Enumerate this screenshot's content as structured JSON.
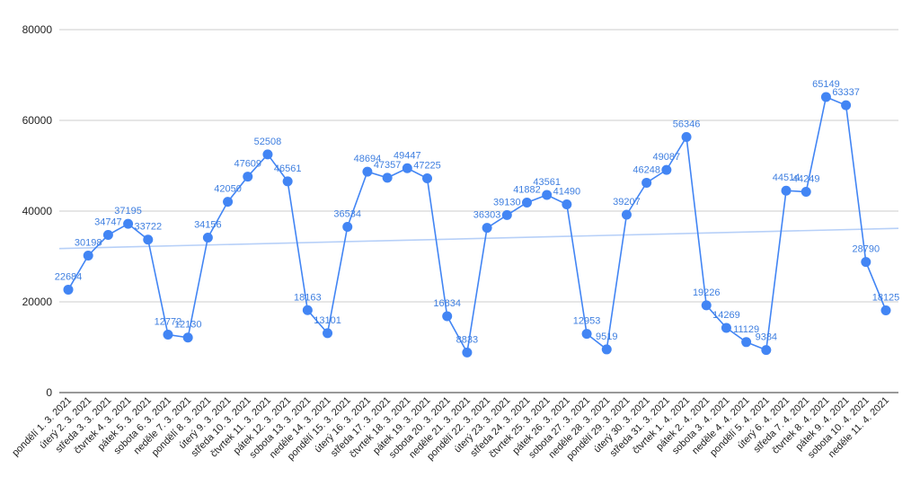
{
  "chart_data": {
    "type": "line",
    "title": "",
    "xlabel": "",
    "ylabel": "",
    "ylim": [
      0,
      80000
    ],
    "yticks": [
      0,
      20000,
      40000,
      60000,
      80000
    ],
    "grid": true,
    "trendline": true,
    "colors": {
      "series": "#4285f4",
      "trend": "#b7d0f8",
      "label": "#3f7fe0"
    },
    "categories": [
      "pondělí 1. 3. 2021",
      "úterý 2. 3. 2021",
      "středa 3. 3. 2021",
      "čtvrtek 4. 3. 2021",
      "pátek 5. 3. 2021",
      "sobota 6. 3. 2021",
      "neděle 7. 3. 2021",
      "pondělí 8. 3. 2021",
      "úterý 9. 3. 2021",
      "středa 10. 3. 2021",
      "čtvrtek 11. 3. 2021",
      "pátek 12. 3. 2021",
      "sobota 13. 3. 2021",
      "neděle 14. 3. 2021",
      "pondělí 15. 3. 2021",
      "úterý 16. 3. 2021",
      "středa 17. 3. 2021",
      "čtvrtek 18. 3. 2021",
      "pátek 19. 3. 2021",
      "sobota 20. 3. 2021",
      "neděle 21. 3. 2021",
      "pondělí 22. 3. 2021",
      "úterý 23. 3. 2021",
      "středa 24. 3. 2021",
      "čtvrtek 25. 3. 2021",
      "pátek 26. 3. 2021",
      "sobota 27. 3. 2021",
      "neděle 28. 3. 2021",
      "pondělí 29. 3. 2021",
      "úterý 30. 3. 2021",
      "středa 31. 3. 2021",
      "čtvrtek 1. 4. 2021",
      "pátek 2. 4. 2021",
      "sobota 3. 4. 2021",
      "neděle 4. 4. 2021",
      "pondělí 5. 4. 2021",
      "úterý 6. 4. 2021",
      "středa 7. 4. 2021",
      "čtvrtek 8. 4. 2021",
      "pátek 9. 4. 2021",
      "sobota 10. 4. 2021",
      "neděle 11. 4. 2021"
    ],
    "values": [
      22684,
      30198,
      34747,
      37195,
      33722,
      12772,
      12130,
      34156,
      42050,
      47609,
      52508,
      46561,
      18163,
      13101,
      36534,
      48694,
      47357,
      49447,
      47225,
      16834,
      8833,
      36303,
      39130,
      41882,
      43561,
      41490,
      12953,
      9519,
      39207,
      46248,
      49087,
      56346,
      19226,
      14269,
      11129,
      9384,
      44514,
      44249,
      65149,
      63337,
      28790,
      18125
    ]
  }
}
